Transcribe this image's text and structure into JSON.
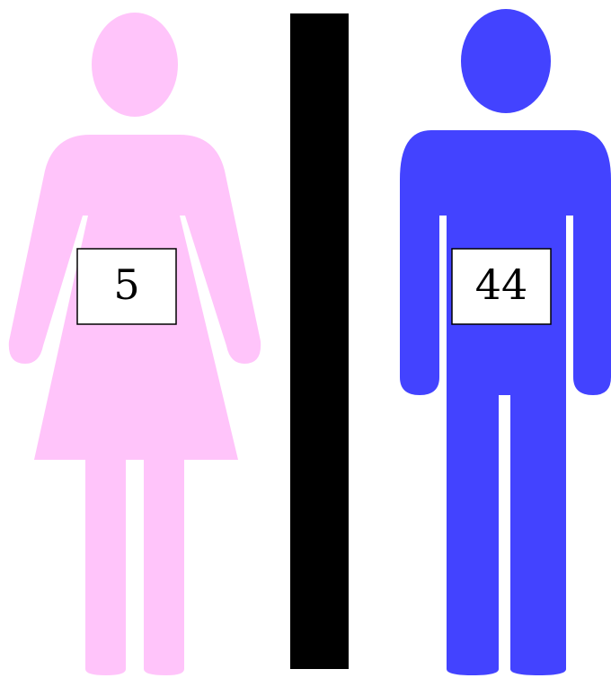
{
  "figures": [
    {
      "value": 5
    },
    {
      "value": 44
    }
  ]
}
